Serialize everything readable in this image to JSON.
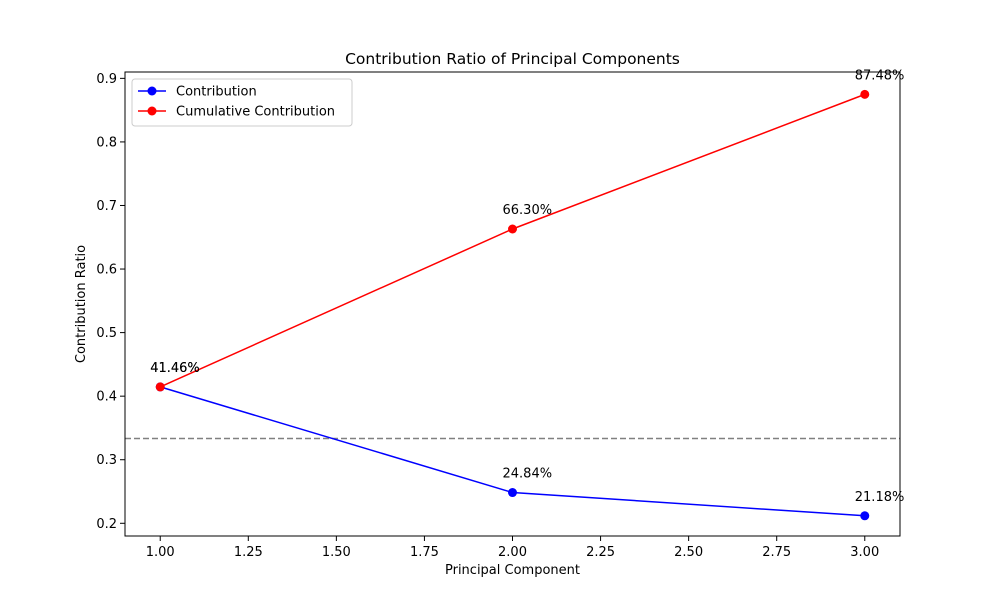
{
  "chart_data": {
    "type": "line",
    "title": "Contribution Ratio of Principal Components",
    "xlabel": "Principal Component",
    "ylabel": "Contribution Ratio",
    "xlim": [
      0.9,
      3.1
    ],
    "ylim": [
      0.18,
      0.91
    ],
    "x_ticks": [
      "1.00",
      "1.25",
      "1.50",
      "1.75",
      "2.00",
      "2.25",
      "2.50",
      "2.75",
      "3.00"
    ],
    "y_ticks": [
      "0.2",
      "0.3",
      "0.4",
      "0.5",
      "0.6",
      "0.7",
      "0.8",
      "0.9"
    ],
    "grid": false,
    "legend_position": "top-left",
    "reference_line": {
      "y": 0.3333,
      "style": "dashed",
      "color": "#808080"
    },
    "series": [
      {
        "name": "Contribution",
        "color": "#0000ff",
        "marker": "circle",
        "x": [
          1,
          2,
          3
        ],
        "values": [
          0.4146,
          0.2484,
          0.2118
        ],
        "labels": [
          "41.46%",
          "24.84%",
          "21.18%"
        ]
      },
      {
        "name": "Cumulative Contribution",
        "color": "#ff0000",
        "marker": "circle",
        "x": [
          1,
          2,
          3
        ],
        "values": [
          0.4146,
          0.663,
          0.8748
        ],
        "labels": [
          "41.46%",
          "66.30%",
          "87.48%"
        ]
      }
    ]
  }
}
